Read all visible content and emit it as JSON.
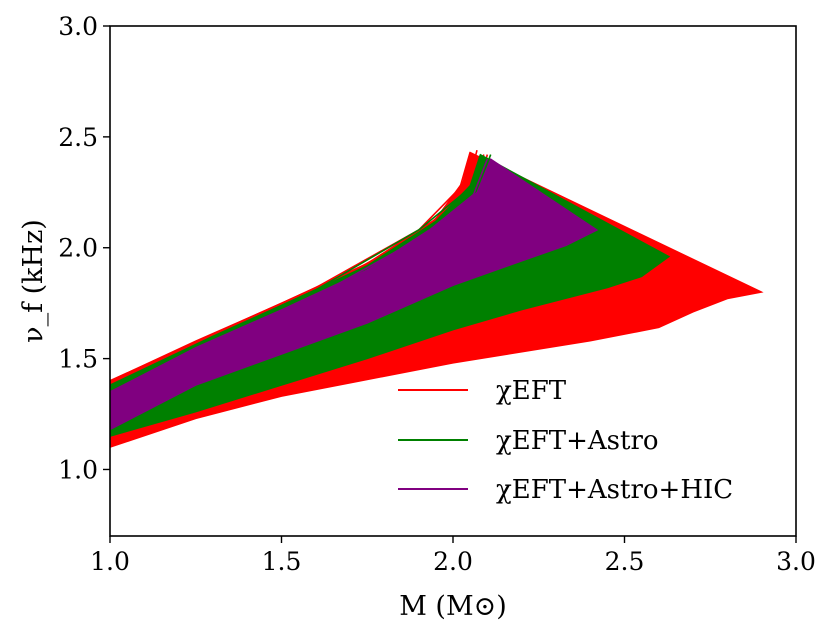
{
  "chart_data": {
    "type": "line",
    "title": "",
    "xlabel": "M (M⊙)",
    "ylabel": "ν_f (kHz)",
    "xlim": [
      1.0,
      3.0
    ],
    "ylim": [
      0.7,
      3.0
    ],
    "xticks": [
      "1.0",
      "1.5",
      "2.0",
      "2.5",
      "3.0"
    ],
    "xtick_values": [
      1.0,
      1.5,
      2.0,
      2.5,
      3.0
    ],
    "yticks": [
      "1.0",
      "1.5",
      "2.0",
      "2.5",
      "3.0"
    ],
    "ytick_values": [
      1.0,
      1.5,
      2.0,
      2.5,
      3.0
    ],
    "grid": false,
    "legend_position": "lower-right",
    "series": [
      {
        "name": "χEFT",
        "legend_label": "χEFT",
        "color": "#ff0000",
        "band_upper": [
          [
            1.0,
            1.4
          ],
          [
            1.25,
            1.58
          ],
          [
            1.5,
            1.75
          ],
          [
            1.75,
            1.93
          ],
          [
            1.95,
            2.13
          ],
          [
            2.03,
            2.3
          ],
          [
            2.05,
            2.43
          ]
        ],
        "band_lower": [
          [
            2.9,
            1.8
          ],
          [
            2.8,
            1.77
          ],
          [
            2.7,
            1.71
          ],
          [
            2.6,
            1.64
          ],
          [
            2.4,
            1.58
          ],
          [
            2.0,
            1.48
          ],
          [
            1.5,
            1.33
          ],
          [
            1.25,
            1.23
          ],
          [
            1.0,
            1.1
          ]
        ],
        "curves": [
          [
            [
              1.0,
              1.4
            ],
            [
              1.3,
              1.61
            ],
            [
              1.6,
              1.82
            ],
            [
              1.9,
              2.08
            ],
            [
              2.02,
              2.27
            ],
            [
              2.05,
              2.43
            ]
          ],
          [
            [
              1.0,
              1.38
            ],
            [
              1.3,
              1.59
            ],
            [
              1.6,
              1.8
            ],
            [
              1.9,
              2.06
            ],
            [
              2.04,
              2.26
            ],
            [
              2.07,
              2.44
            ]
          ],
          [
            [
              1.0,
              1.37
            ],
            [
              1.35,
              1.62
            ],
            [
              1.7,
              1.87
            ],
            [
              1.95,
              2.12
            ],
            [
              2.06,
              2.3
            ],
            [
              2.09,
              2.42
            ]
          ],
          [
            [
              1.0,
              1.36
            ],
            [
              1.35,
              1.6
            ],
            [
              1.7,
              1.85
            ],
            [
              1.98,
              2.12
            ],
            [
              2.08,
              2.3
            ],
            [
              2.1,
              2.42
            ]
          ]
        ]
      },
      {
        "name": "χEFT+Astro",
        "legend_label": "χEFT+Astro",
        "color": "#008000",
        "band_upper": [
          [
            1.0,
            1.38
          ],
          [
            1.25,
            1.56
          ],
          [
            1.5,
            1.74
          ],
          [
            1.75,
            1.92
          ],
          [
            1.95,
            2.12
          ],
          [
            2.05,
            2.28
          ],
          [
            2.08,
            2.42
          ]
        ],
        "band_lower": [
          [
            2.63,
            1.96
          ],
          [
            2.55,
            1.87
          ],
          [
            2.45,
            1.82
          ],
          [
            2.2,
            1.72
          ],
          [
            2.0,
            1.63
          ],
          [
            1.75,
            1.5
          ],
          [
            1.5,
            1.38
          ],
          [
            1.25,
            1.26
          ],
          [
            1.0,
            1.15
          ]
        ],
        "curves": [
          [
            [
              1.0,
              1.38
            ],
            [
              1.3,
              1.6
            ],
            [
              1.6,
              1.81
            ],
            [
              1.9,
              2.08
            ],
            [
              2.05,
              2.27
            ],
            [
              2.08,
              2.42
            ]
          ],
          [
            [
              1.0,
              1.37
            ],
            [
              1.35,
              1.61
            ],
            [
              1.7,
              1.86
            ],
            [
              1.98,
              2.13
            ],
            [
              2.08,
              2.3
            ],
            [
              2.11,
              2.42
            ]
          ]
        ]
      },
      {
        "name": "χEFT+Astro+HIC",
        "legend_label": "χEFT+Astro+HIC",
        "color": "#800080",
        "band_upper": [
          [
            1.0,
            1.35
          ],
          [
            1.25,
            1.55
          ],
          [
            1.5,
            1.72
          ],
          [
            1.75,
            1.9
          ],
          [
            1.95,
            2.1
          ],
          [
            2.07,
            2.25
          ],
          [
            2.11,
            2.4
          ]
        ],
        "band_lower": [
          [
            2.42,
            2.08
          ],
          [
            2.33,
            2.01
          ],
          [
            2.2,
            1.94
          ],
          [
            2.0,
            1.83
          ],
          [
            1.75,
            1.66
          ],
          [
            1.5,
            1.52
          ],
          [
            1.25,
            1.38
          ],
          [
            1.0,
            1.18
          ]
        ],
        "curves": [
          [
            [
              1.0,
              1.35
            ],
            [
              1.3,
              1.58
            ],
            [
              1.6,
              1.78
            ],
            [
              1.9,
              2.04
            ],
            [
              2.06,
              2.24
            ],
            [
              2.1,
              2.4
            ]
          ]
        ]
      }
    ]
  }
}
